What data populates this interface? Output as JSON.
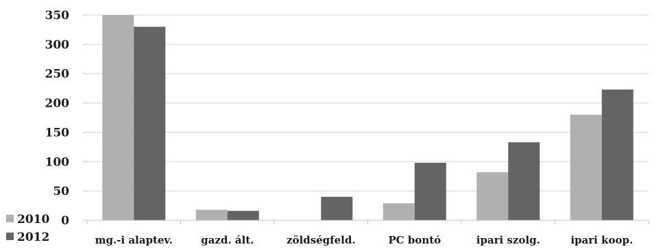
{
  "chart_data": {
    "type": "bar",
    "title": "",
    "xlabel": "",
    "ylabel": "",
    "categories": [
      "mg.-i alaptev.",
      "gazd. ált.",
      "zöldségfeld.",
      "PC bontó",
      "ipari szolg.",
      "ipari koop."
    ],
    "series": [
      {
        "name": "2010",
        "color": "#b0b0b0",
        "values": [
          350,
          18,
          0,
          29,
          82,
          180
        ]
      },
      {
        "name": "2012",
        "color": "#646464",
        "values": [
          330,
          16,
          40,
          98,
          133,
          223
        ]
      }
    ],
    "ylim": [
      0,
      350
    ],
    "yticks": [
      "0",
      "50",
      "100",
      "150",
      "200",
      "250",
      "300",
      "350"
    ],
    "grid": true,
    "legend_position": "bottom-left"
  }
}
